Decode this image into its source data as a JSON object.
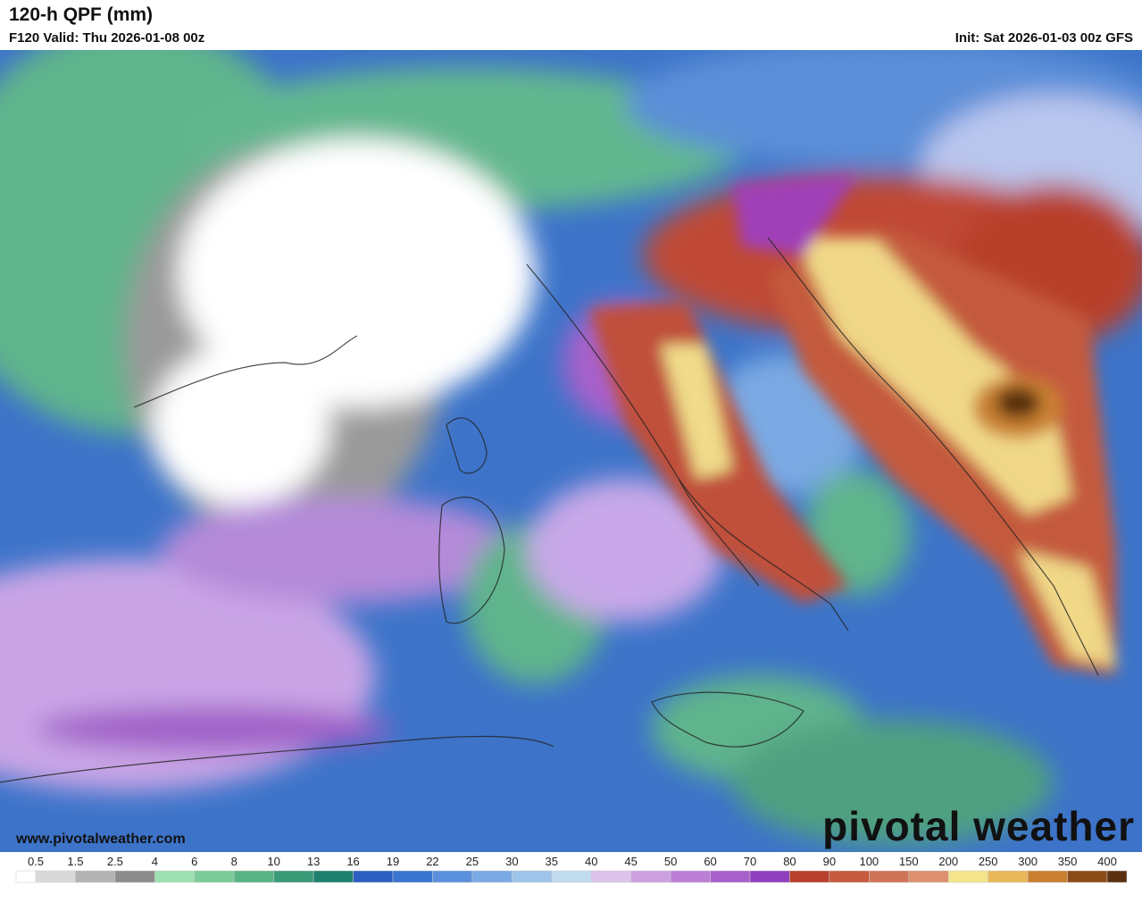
{
  "header": {
    "title": "120-h QPF (mm)",
    "valid": "F120 Valid: Thu 2026-01-08 00z",
    "init": "Init: Sat 2026-01-03 00z GFS"
  },
  "watermark": {
    "url": "www.pivotalweather.com",
    "logo": "pivotal weather"
  },
  "colorbar": {
    "ticks": [
      0.5,
      1.5,
      2.5,
      4,
      6,
      8,
      10,
      13,
      16,
      19,
      22,
      25,
      30,
      35,
      40,
      45,
      50,
      60,
      70,
      80,
      90,
      100,
      150,
      200,
      250,
      300,
      350,
      400
    ],
    "colors": [
      "#ffffff",
      "#d9d9d9",
      "#b3b3b3",
      "#8c8c8c",
      "#9ee0b2",
      "#7ccb9a",
      "#59b285",
      "#3a9a78",
      "#1f7f6d",
      "#2b5fbf",
      "#3a75d0",
      "#5a90dc",
      "#7aa9e3",
      "#9ec4ea",
      "#c2dcef",
      "#dbc3ea",
      "#cda0e0",
      "#bb7fd6",
      "#a860cb",
      "#9040bd",
      "#b8402c",
      "#c65a3e",
      "#d07458",
      "#dc9070",
      "#f4e48c",
      "#e8b85a",
      "#c98030",
      "#8c4c18",
      "#5a3010"
    ]
  }
}
